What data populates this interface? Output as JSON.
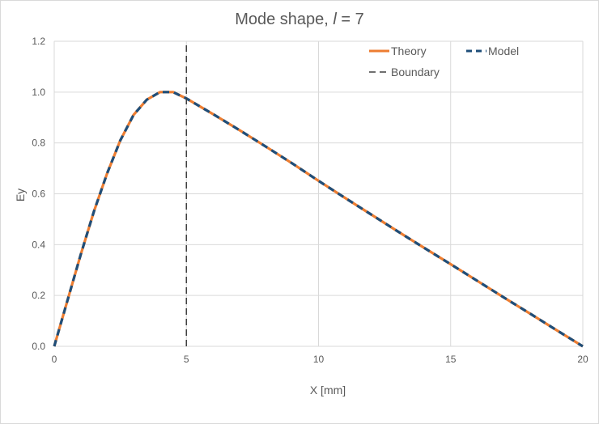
{
  "chart_data": {
    "type": "line",
    "title": "Mode shape, ",
    "title_italic": "l",
    "title_suffix": " = 7",
    "xlabel": "X [mm]",
    "ylabel": "Ey",
    "xlim": [
      0,
      20
    ],
    "ylim": [
      0,
      1.2
    ],
    "x_ticks": [
      "0",
      "5",
      "10",
      "15",
      "20"
    ],
    "y_ticks": [
      "0.0",
      "0.2",
      "0.4",
      "0.6",
      "0.8",
      "1.0",
      "1.2"
    ],
    "grid": true,
    "legend_position": "top-right",
    "series": [
      {
        "name": "Theory",
        "color": "#ED7D31",
        "style": "solid",
        "x": [
          0,
          0.5,
          1,
          1.5,
          2,
          2.5,
          3,
          3.5,
          4,
          4.5,
          5,
          6,
          7,
          8,
          9,
          10,
          11,
          12,
          13,
          14,
          15,
          16,
          17,
          18,
          19,
          20
        ],
        "y": [
          0,
          0.18,
          0.36,
          0.53,
          0.68,
          0.81,
          0.91,
          0.97,
          1.0,
          1.0,
          0.975,
          0.914,
          0.851,
          0.786,
          0.72,
          0.651,
          0.584,
          0.518,
          0.452,
          0.387,
          0.323,
          0.258,
          0.193,
          0.129,
          0.064,
          0
        ]
      },
      {
        "name": "Model",
        "color": "#1F4E79",
        "style": "dashed",
        "x": [
          0,
          0.5,
          1,
          1.5,
          2,
          2.5,
          3,
          3.5,
          4,
          4.5,
          5,
          6,
          7,
          8,
          9,
          10,
          11,
          12,
          13,
          14,
          15,
          16,
          17,
          18,
          19,
          20
        ],
        "y": [
          0,
          0.18,
          0.36,
          0.53,
          0.68,
          0.81,
          0.91,
          0.97,
          1.0,
          1.0,
          0.975,
          0.914,
          0.851,
          0.786,
          0.72,
          0.651,
          0.584,
          0.518,
          0.452,
          0.387,
          0.323,
          0.258,
          0.193,
          0.129,
          0.064,
          0
        ]
      },
      {
        "name": "Boundary",
        "color": "#404040",
        "style": "dashed",
        "x": [
          5,
          5
        ],
        "y": [
          0,
          1.2
        ]
      }
    ]
  }
}
